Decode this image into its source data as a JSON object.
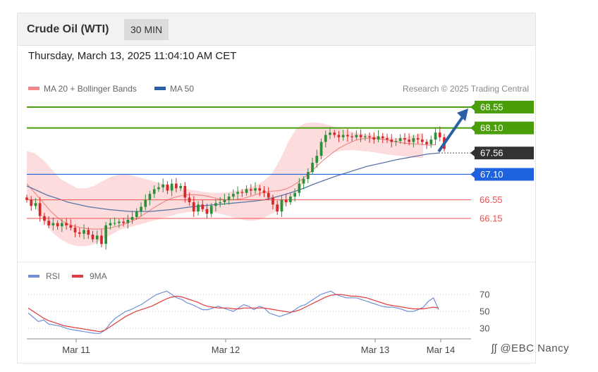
{
  "header": {
    "title": "Crude Oil (WTI)",
    "timeframe": "30 MIN"
  },
  "datetime": "Thursday, March 13, 2025 11:04:10 AM CET",
  "legend": {
    "ma20": "MA 20 + Bollinger Bands",
    "ma50": "MA 50"
  },
  "credit": "Research © 2025 Trading Central",
  "watermark": "ʃʃ @EBC Nancy",
  "colors": {
    "resistance": "#4a9e0a",
    "support": "#1f62e0",
    "pivot": "#1f62e0",
    "stop_red": "#f05050",
    "current": "#333333",
    "ma20": "#f08a8a",
    "ma50": "#5a76a8",
    "bollinger": "#fcd6d6",
    "bull": "#2e8f3a",
    "bear": "#d62828",
    "arrow": "#2b5fa6",
    "rsi": "#7090d8",
    "rsi_ma": "#e23b3b"
  },
  "chart_data": [
    {
      "type": "candlestick",
      "title": "Crude Oil (WTI)",
      "timeframe": "30 MIN",
      "x_ticks": [
        "Mar 11",
        "Mar 12",
        "Mar 13",
        "Mar 14"
      ],
      "ylim": [
        65.5,
        68.9
      ],
      "current_price": 67.56,
      "levels": [
        {
          "label": "68.55",
          "value": 68.55,
          "kind": "resistance"
        },
        {
          "label": "68.10",
          "value": 68.1,
          "kind": "resistance"
        },
        {
          "label": "67.56",
          "value": 67.56,
          "kind": "current"
        },
        {
          "label": "67.10",
          "value": 67.1,
          "kind": "pivot"
        },
        {
          "label": "66.55",
          "value": 66.55,
          "kind": "support"
        },
        {
          "label": "66.15",
          "value": 66.15,
          "kind": "support"
        }
      ],
      "forecast_arrow": {
        "from": 67.56,
        "to": 68.55,
        "direction": "up"
      },
      "close_series": [
        66.55,
        66.42,
        66.48,
        66.2,
        66.1,
        66.0,
        66.05,
        65.98,
        66.05,
        66.0,
        65.95,
        65.85,
        65.82,
        65.9,
        65.8,
        65.7,
        65.78,
        65.6,
        66.0,
        66.05,
        66.05,
        66.08,
        66.05,
        66.12,
        66.18,
        66.3,
        66.4,
        66.55,
        66.68,
        66.78,
        66.82,
        66.88,
        66.75,
        66.9,
        66.8,
        66.85,
        66.6,
        66.5,
        66.3,
        66.45,
        66.35,
        66.25,
        66.42,
        66.48,
        66.5,
        66.55,
        66.62,
        66.68,
        66.72,
        66.7,
        66.78,
        66.75,
        66.8,
        66.75,
        66.7,
        66.6,
        66.45,
        66.3,
        66.55,
        66.5,
        66.62,
        66.7,
        66.9,
        67.0,
        67.15,
        67.35,
        67.5,
        67.8,
        67.95,
        68.0,
        67.95,
        67.9,
        67.95,
        67.92,
        67.9,
        67.95,
        67.9,
        67.92,
        67.9,
        67.85,
        67.92,
        67.88,
        67.85,
        67.8,
        67.82,
        67.88,
        67.85,
        67.8,
        67.88,
        67.85,
        67.8,
        67.75,
        67.85,
        68.0,
        67.9,
        67.65
      ],
      "ma20_series": [
        66.9,
        66.75,
        66.6,
        66.45,
        66.3,
        66.18,
        66.08,
        66.02,
        65.98,
        65.95,
        65.93,
        65.92,
        65.92,
        65.93,
        65.95,
        65.98,
        66.02,
        66.07,
        66.12,
        66.2,
        66.28,
        66.37,
        66.45,
        66.52,
        66.58,
        66.62,
        66.65,
        66.66,
        66.66,
        66.65,
        66.63,
        66.6,
        66.57,
        66.55,
        66.55,
        66.56,
        66.58,
        66.62,
        66.66,
        66.7,
        66.72,
        66.74,
        66.75,
        66.78,
        66.84,
        66.92,
        67.02,
        67.13,
        67.25,
        67.37,
        67.48,
        67.58,
        67.67,
        67.74,
        67.8,
        67.85,
        67.87,
        67.88,
        67.88,
        67.86,
        67.84,
        67.81,
        67.79,
        67.77,
        67.76,
        67.75,
        67.74,
        67.73,
        67.74
      ],
      "ma50_series": [
        66.85,
        66.75,
        66.65,
        66.58,
        66.5,
        66.45,
        66.4,
        66.37,
        66.34,
        66.32,
        66.3,
        66.3,
        66.3,
        66.32,
        66.34,
        66.37,
        66.4,
        66.42,
        66.44,
        66.46,
        66.48,
        66.5,
        66.52,
        66.55,
        66.6,
        66.66,
        66.73,
        66.81,
        66.9,
        66.98,
        67.06,
        67.13,
        67.2,
        67.27,
        67.32,
        67.37,
        67.42,
        67.46,
        67.5,
        67.54,
        67.56
      ],
      "bollinger_upper": [
        67.6,
        67.55,
        67.4,
        67.2,
        67.0,
        66.9,
        66.8,
        66.8,
        66.85,
        66.95,
        67.05,
        67.1,
        67.1,
        67.05,
        67.0,
        66.95,
        66.9,
        66.85,
        66.8,
        66.78,
        66.75,
        66.72,
        66.7,
        66.7,
        66.72,
        66.75,
        66.8,
        66.85,
        66.95,
        67.1,
        67.4,
        67.8,
        68.1,
        68.2,
        68.22,
        68.2,
        68.15,
        68.1,
        68.05,
        68.0,
        67.97,
        67.95,
        67.92,
        67.9,
        67.88,
        67.9,
        67.95,
        68.0
      ],
      "bollinger_lower": [
        66.6,
        66.4,
        66.1,
        65.85,
        65.7,
        65.6,
        65.55,
        65.55,
        65.6,
        65.7,
        65.8,
        65.9,
        65.95,
        66.0,
        66.05,
        66.1,
        66.15,
        66.2,
        66.25,
        66.28,
        66.3,
        66.3,
        66.28,
        66.25,
        66.2,
        66.15,
        66.1,
        66.1,
        66.15,
        66.25,
        66.35,
        66.5,
        66.7,
        66.95,
        67.25,
        67.45,
        67.55,
        67.6,
        67.62,
        67.62,
        67.6,
        67.58,
        67.55,
        67.52,
        67.5,
        67.48,
        67.46,
        67.45
      ]
    },
    {
      "type": "line",
      "title": "",
      "series": [
        {
          "name": "RSI",
          "values": [
            48,
            43,
            38,
            40,
            35,
            34,
            33,
            31,
            29,
            28,
            27,
            26,
            25,
            24,
            24,
            28,
            36,
            42,
            46,
            50,
            52,
            55,
            58,
            62,
            66,
            70,
            72,
            74,
            70,
            66,
            64,
            60,
            58,
            55,
            52,
            52,
            54,
            56,
            54,
            52,
            50,
            54,
            58,
            56,
            52,
            56,
            54,
            48,
            46,
            44,
            46,
            48,
            52,
            56,
            58,
            62,
            66,
            70,
            72,
            74,
            70,
            68,
            66,
            66,
            66,
            64,
            62,
            60,
            58,
            56,
            55,
            55,
            54,
            52,
            50,
            50,
            52,
            55,
            62,
            66,
            52
          ]
        },
        {
          "name": "9MA",
          "values": [
            54,
            50,
            46,
            42,
            39,
            37,
            35,
            33,
            32,
            31,
            30,
            29,
            28,
            27,
            26,
            28,
            32,
            36,
            40,
            44,
            47,
            50,
            52,
            54,
            56,
            59,
            62,
            65,
            67,
            68,
            67,
            65,
            63,
            61,
            58,
            56,
            55,
            54,
            54,
            54,
            53,
            53,
            54,
            54,
            54,
            54,
            54,
            53,
            52,
            51,
            50,
            49,
            50,
            52,
            55,
            58,
            61,
            64,
            67,
            69,
            70,
            70,
            69,
            68,
            68,
            67,
            66,
            64,
            62,
            60,
            58,
            57,
            56,
            55,
            54,
            53,
            53,
            53,
            54,
            55,
            54
          ]
        }
      ],
      "y_ticks": [
        70,
        50,
        30
      ],
      "ylim": [
        20,
        80
      ]
    }
  ]
}
